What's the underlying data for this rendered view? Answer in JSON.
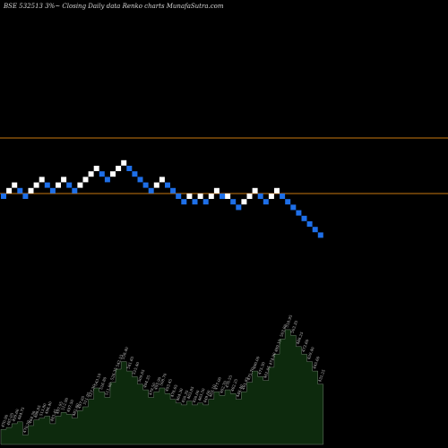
{
  "header": {
    "title": "BSE 532513 3%~  Closing Daily data  Renko  charts MunafaSutra.com"
  },
  "colors": {
    "background": "#000000",
    "up_brick": "#ffffff",
    "down_brick": "#1e6fe8",
    "line_brick": "#c8780f",
    "volume_fill": "#0d2a0d",
    "volume_stroke": "#6f7f6f",
    "label": "#c8c8c8"
  },
  "chart_data": {
    "type": "renko",
    "title": "BSE 532513 3%~  Closing Daily data  Renko  charts MunafaSutra.com",
    "reference_lines": [
      {
        "name": "upper",
        "level": 10
      },
      {
        "name": "lower",
        "level": 0
      }
    ],
    "bricks": [
      {
        "dir": "down",
        "level": 0
      },
      {
        "dir": "up",
        "level": 1
      },
      {
        "dir": "up",
        "level": 2
      },
      {
        "dir": "down",
        "level": 1
      },
      {
        "dir": "down",
        "level": 0
      },
      {
        "dir": "up",
        "level": 1
      },
      {
        "dir": "up",
        "level": 2
      },
      {
        "dir": "up",
        "level": 3
      },
      {
        "dir": "down",
        "level": 2
      },
      {
        "dir": "down",
        "level": 1
      },
      {
        "dir": "up",
        "level": 2
      },
      {
        "dir": "up",
        "level": 3
      },
      {
        "dir": "down",
        "level": 2
      },
      {
        "dir": "down",
        "level": 1
      },
      {
        "dir": "up",
        "level": 2
      },
      {
        "dir": "up",
        "level": 3
      },
      {
        "dir": "up",
        "level": 4
      },
      {
        "dir": "up",
        "level": 5
      },
      {
        "dir": "down",
        "level": 4
      },
      {
        "dir": "down",
        "level": 3
      },
      {
        "dir": "up",
        "level": 4
      },
      {
        "dir": "up",
        "level": 5
      },
      {
        "dir": "up",
        "level": 6
      },
      {
        "dir": "down",
        "level": 5
      },
      {
        "dir": "down",
        "level": 4
      },
      {
        "dir": "down",
        "level": 3
      },
      {
        "dir": "down",
        "level": 2
      },
      {
        "dir": "down",
        "level": 1
      },
      {
        "dir": "up",
        "level": 2
      },
      {
        "dir": "up",
        "level": 3
      },
      {
        "dir": "down",
        "level": 2
      },
      {
        "dir": "down",
        "level": 1
      },
      {
        "dir": "down",
        "level": 0
      },
      {
        "dir": "down",
        "level": -1
      },
      {
        "dir": "up",
        "level": 0
      },
      {
        "dir": "down",
        "level": -1
      },
      {
        "dir": "up",
        "level": 0
      },
      {
        "dir": "down",
        "level": -1
      },
      {
        "dir": "up",
        "level": 0
      },
      {
        "dir": "up",
        "level": 1
      },
      {
        "dir": "down",
        "level": 0
      },
      {
        "dir": "up",
        "level": 0
      },
      {
        "dir": "down",
        "level": -1
      },
      {
        "dir": "down",
        "level": -2
      },
      {
        "dir": "up",
        "level": -1
      },
      {
        "dir": "up",
        "level": 0
      },
      {
        "dir": "up",
        "level": 1
      },
      {
        "dir": "down",
        "level": 0
      },
      {
        "dir": "down",
        "level": -1
      },
      {
        "dir": "up",
        "level": 0
      },
      {
        "dir": "up",
        "level": 1
      },
      {
        "dir": "down",
        "level": 0
      },
      {
        "dir": "down",
        "level": -1
      },
      {
        "dir": "down",
        "level": -2
      },
      {
        "dir": "down",
        "level": -3
      },
      {
        "dir": "down",
        "level": -4
      },
      {
        "dir": "down",
        "level": -5
      },
      {
        "dir": "down",
        "level": -6
      },
      {
        "dir": "down",
        "level": -7
      }
    ],
    "volume": [
      {
        "label": "470.90",
        "value": 16
      },
      {
        "label": "485.05",
        "value": 18
      },
      {
        "label": "499.60",
        "value": 22
      },
      {
        "label": "484.75",
        "value": 24
      },
      {
        "label": "470.20",
        "value": 10
      },
      {
        "label": "484.30",
        "value": 20
      },
      {
        "label": "498.85",
        "value": 26
      },
      {
        "label": "513.80",
        "value": 28
      },
      {
        "label": "498.40",
        "value": 30
      },
      {
        "label": "483.45",
        "value": 22
      },
      {
        "label": "497.95",
        "value": 30
      },
      {
        "label": "512.90",
        "value": 34
      },
      {
        "label": "497.50",
        "value": 32
      },
      {
        "label": "482.60",
        "value": 28
      },
      {
        "label": "497.05",
        "value": 36
      },
      {
        "label": "511.95",
        "value": 40
      },
      {
        "label": "527.30",
        "value": 48
      },
      {
        "label": "543.10",
        "value": 60
      },
      {
        "label": "526.80",
        "value": 56
      },
      {
        "label": "511.00",
        "value": 50
      },
      {
        "label": "526.35",
        "value": 66
      },
      {
        "label": "542.15",
        "value": 80
      },
      {
        "label": "558.40",
        "value": 88
      },
      {
        "label": "541.65",
        "value": 78
      },
      {
        "label": "525.40",
        "value": 72
      },
      {
        "label": "509.65",
        "value": 64
      },
      {
        "label": "494.35",
        "value": 58
      },
      {
        "label": "479.50",
        "value": 50
      },
      {
        "label": "493.90",
        "value": 56
      },
      {
        "label": "508.70",
        "value": 60
      },
      {
        "label": "493.45",
        "value": 54
      },
      {
        "label": "478.65",
        "value": 48
      },
      {
        "label": "464.30",
        "value": 44
      },
      {
        "label": "450.35",
        "value": 42
      },
      {
        "label": "463.85",
        "value": 46
      },
      {
        "label": "450.00",
        "value": 42
      },
      {
        "label": "463.50",
        "value": 44
      },
      {
        "label": "449.60",
        "value": 42
      },
      {
        "label": "463.10",
        "value": 48
      },
      {
        "label": "477.00",
        "value": 56
      },
      {
        "label": "462.70",
        "value": 52
      },
      {
        "label": "476.55",
        "value": 58
      },
      {
        "label": "462.25",
        "value": 54
      },
      {
        "label": "448.40",
        "value": 48
      },
      {
        "label": "461.85",
        "value": 56
      },
      {
        "label": "475.70",
        "value": 66
      },
      {
        "label": "490.00",
        "value": 78
      },
      {
        "label": "475.30",
        "value": 72
      },
      {
        "label": "461.05",
        "value": 68
      },
      {
        "label": "474.90",
        "value": 82
      },
      {
        "label": "489.15",
        "value": 96
      },
      {
        "label": "503.80",
        "value": 112
      },
      {
        "label": "518.95",
        "value": 122
      },
      {
        "label": "503.35",
        "value": 116
      },
      {
        "label": "488.25",
        "value": 104
      },
      {
        "label": "473.60",
        "value": 96
      },
      {
        "label": "459.40",
        "value": 88
      },
      {
        "label": "445.60",
        "value": 78
      },
      {
        "label": "432.25",
        "value": 64
      }
    ]
  }
}
